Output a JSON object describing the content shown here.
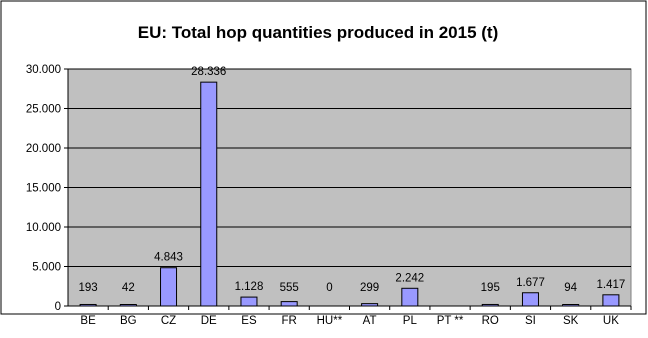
{
  "chart_data": {
    "type": "bar",
    "title": "EU: Total hop quantities produced in 2015 (t)",
    "xlabel": "",
    "ylabel": "",
    "categories": [
      "BE",
      "BG",
      "CZ",
      "DE",
      "ES",
      "FR",
      "HU**",
      "AT",
      "PL",
      "PT **",
      "RO",
      "SI",
      "SK",
      "UK"
    ],
    "values": [
      193,
      42,
      4843,
      28336,
      1128,
      555,
      0,
      299,
      2242,
      null,
      195,
      1677,
      94,
      1417
    ],
    "data_labels": [
      "193",
      "42",
      "4.843",
      "28.336",
      "1.128",
      "555",
      "0",
      "299",
      "2.242",
      "",
      "195",
      "1.677",
      "94",
      "1.417"
    ],
    "y_ticks": [
      0,
      5000,
      10000,
      15000,
      20000,
      25000,
      30000
    ],
    "y_tick_labels": [
      "0",
      "5.000",
      "10.000",
      "15.000",
      "20.000",
      "25.000",
      "30.000"
    ],
    "ylim": [
      0,
      30000
    ],
    "grid": true,
    "legend": "none",
    "colors": {
      "bar_fill": "#9999ff",
      "bar_stroke": "#000000",
      "plot_background": "#c0c0c0",
      "gridline": "#000000",
      "chart_border": "#000000"
    }
  }
}
